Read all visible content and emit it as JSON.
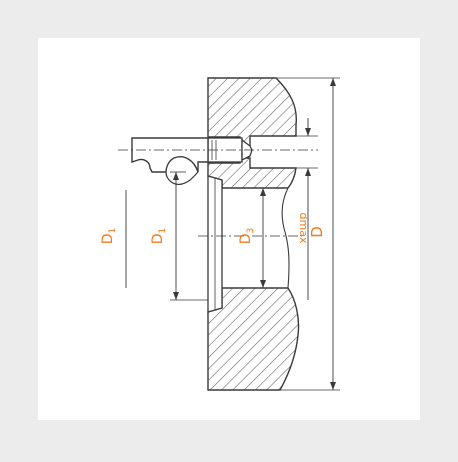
{
  "colors": {
    "background": "#ececec",
    "panel": "#ffffff",
    "line": "#3a3a3a",
    "hatch": "#6a6a6a",
    "label": "#f07a1e"
  },
  "labels": {
    "d1_outer": "D",
    "d1_outer_sub": "1",
    "d1_inner": "D",
    "d1_inner_sub": "1",
    "d3": "D",
    "d3_sub": "3",
    "dmax": "dmax",
    "d_big": "D"
  }
}
